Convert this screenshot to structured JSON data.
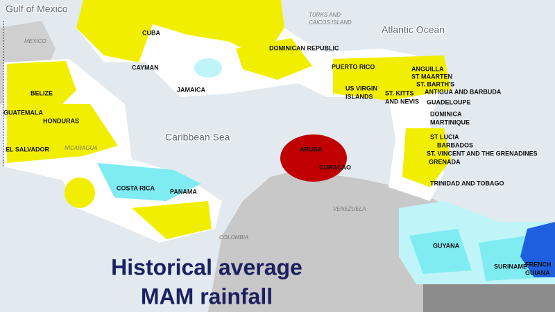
{
  "title": {
    "lines": [
      "Historical average",
      "MAM rainfall"
    ]
  },
  "water_labels": [
    {
      "lines": [
        "Gulf of Mexico"
      ]
    },
    {
      "lines": [
        "Atlantic Ocean"
      ]
    },
    {
      "lines": [
        "Caribbean Sea"
      ]
    }
  ],
  "region_labels": [
    {
      "lines": [
        "MEXICO"
      ]
    },
    {
      "lines": [
        "TURKS AND",
        "CAICOS ISLAND"
      ]
    },
    {
      "lines": [
        "NICARAGUA"
      ]
    },
    {
      "lines": [
        "VENEZUELA"
      ]
    },
    {
      "lines": [
        "COLOMBIA"
      ]
    }
  ],
  "country_labels": [
    {
      "lines": [
        "CUBA"
      ]
    },
    {
      "lines": [
        "CAYMAN"
      ]
    },
    {
      "lines": [
        "JAMAICA"
      ]
    },
    {
      "lines": [
        "DOMINICAN REPUBLIC"
      ]
    },
    {
      "lines": [
        "PUERTO RICO"
      ]
    },
    {
      "lines": [
        "ANGUILLA"
      ]
    },
    {
      "lines": [
        "ST MAARTEN"
      ]
    },
    {
      "lines": [
        "ST. BARTH'S"
      ]
    },
    {
      "lines": [
        "ANTIGUA AND BARBUDA"
      ]
    },
    {
      "lines": [
        "US VIRGIN",
        "ISLANDS"
      ]
    },
    {
      "lines": [
        "ST. KITTS",
        "AND NEVIS"
      ]
    },
    {
      "lines": [
        "GUADELOUPE"
      ]
    },
    {
      "lines": [
        "DOMINICA"
      ]
    },
    {
      "lines": [
        "MARTINIQUE"
      ]
    },
    {
      "lines": [
        "BELIZE"
      ]
    },
    {
      "lines": [
        "GUATEMALA"
      ]
    },
    {
      "lines": [
        "HONDURAS"
      ]
    },
    {
      "lines": [
        "EL SALVADOR"
      ]
    },
    {
      "lines": [
        "ARUBA"
      ]
    },
    {
      "lines": [
        "CURAÇAO"
      ]
    },
    {
      "lines": [
        "ST LUCIA"
      ]
    },
    {
      "lines": [
        "BARBADOS"
      ]
    },
    {
      "lines": [
        "ST. VINCENT AND THE GRENADINES"
      ]
    },
    {
      "lines": [
        "GRENADA"
      ]
    },
    {
      "lines": [
        "COSTA RICA"
      ]
    },
    {
      "lines": [
        "PANAMA"
      ]
    },
    {
      "lines": [
        "TRINIDAD AND TOBAGO"
      ]
    },
    {
      "lines": [
        "GUYANA"
      ]
    },
    {
      "lines": [
        "SURINAME"
      ]
    },
    {
      "lines": [
        "FRENCH",
        "GUIANA"
      ]
    }
  ]
}
